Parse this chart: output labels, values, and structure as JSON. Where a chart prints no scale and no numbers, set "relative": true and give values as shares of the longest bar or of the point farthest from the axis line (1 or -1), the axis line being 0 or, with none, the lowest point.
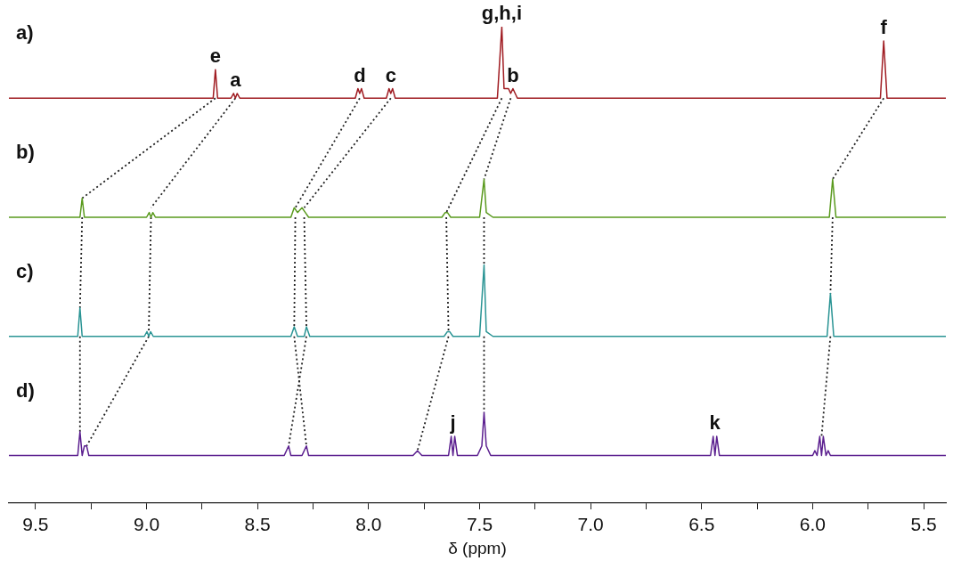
{
  "chart_data": {
    "type": "line",
    "relative": true,
    "xlabel": "δ (ppm)",
    "xlim": [
      9.62,
      5.4
    ],
    "xticks": [
      9.5,
      {
        "value": 9.25,
        "label": null
      },
      {
        "value": 9,
        "label": "9.0"
      },
      {
        "value": 8.75,
        "label": null
      },
      8.5,
      {
        "value": 8.25,
        "label": null
      },
      {
        "value": 8,
        "label": "8.0"
      },
      {
        "value": 7.75,
        "label": null
      },
      7.5,
      {
        "value": 7.25,
        "label": null
      },
      {
        "value": 7,
        "label": "7.0"
      },
      {
        "value": 6.75,
        "label": null
      },
      6.5,
      {
        "value": 6.25,
        "label": null
      },
      {
        "value": 6,
        "label": "6.0"
      },
      {
        "value": 5.75,
        "label": null
      },
      5.5
    ],
    "tick_labels": "x",
    "grid": false,
    "legend": false,
    "marker": "none",
    "series": [
      {
        "color": "#a01c22",
        "x": [
          9.62,
          8.7,
          8.69,
          8.68,
          8.62,
          8.608,
          8.6,
          8.592,
          8.58,
          8.06,
          8.048,
          8.04,
          8.032,
          8.02,
          7.92,
          7.908,
          7.9,
          7.892,
          7.88,
          7.42,
          7.4,
          7.39,
          7.37,
          7.36,
          7.35,
          7.33,
          5.695,
          5.68,
          5.665,
          5.4
        ],
        "values": [
          0.85,
          0.85,
          0.91,
          0.85,
          0.85,
          0.86,
          0.85,
          0.86,
          0.85,
          0.85,
          0.87,
          0.86,
          0.87,
          0.85,
          0.85,
          0.87,
          0.86,
          0.87,
          0.85,
          0.85,
          1,
          0.87,
          0.87,
          0.86,
          0.87,
          0.85,
          0.85,
          0.97,
          0.85,
          0.85
        ]
      },
      {
        "color": "#5a9a1e",
        "x": [
          9.62,
          9.3,
          9.29,
          9.28,
          9.0,
          8.988,
          8.98,
          8.972,
          8.96,
          8.35,
          8.335,
          8.32,
          8.3,
          8.285,
          8.27,
          7.67,
          7.655,
          7.645,
          7.63,
          7.5,
          7.48,
          7.47,
          7.44,
          5.925,
          5.91,
          5.895,
          5.4
        ],
        "values": [
          0.6,
          0.6,
          0.64,
          0.6,
          0.6,
          0.61,
          0.6,
          0.61,
          0.6,
          0.6,
          0.62,
          0.61,
          0.62,
          0.61,
          0.6,
          0.6,
          0.61,
          0.61,
          0.6,
          0.6,
          0.68,
          0.61,
          0.6,
          0.6,
          0.68,
          0.6,
          0.6
        ]
      },
      {
        "color": "#2a9494",
        "x": [
          9.62,
          9.31,
          9.3,
          9.29,
          9.01,
          8.998,
          8.99,
          8.982,
          8.97,
          8.35,
          8.335,
          8.32,
          8.29,
          8.28,
          8.265,
          7.66,
          7.645,
          7.635,
          7.62,
          7.5,
          7.48,
          7.47,
          7.44,
          5.935,
          5.92,
          5.905,
          5.4
        ],
        "values": [
          0.35,
          0.35,
          0.41,
          0.35,
          0.35,
          0.36,
          0.35,
          0.36,
          0.35,
          0.35,
          0.37,
          0.35,
          0.35,
          0.37,
          0.35,
          0.35,
          0.36,
          0.36,
          0.35,
          0.35,
          0.5,
          0.36,
          0.35,
          0.35,
          0.44,
          0.35,
          0.35
        ]
      },
      {
        "color": "#5b1f8f",
        "x": [
          9.62,
          9.31,
          9.3,
          9.29,
          9.28,
          9.27,
          9.26,
          8.38,
          8.36,
          8.35,
          8.3,
          8.28,
          8.27,
          7.8,
          7.78,
          7.76,
          7.64,
          7.628,
          7.62,
          7.612,
          7.6,
          7.51,
          7.49,
          7.48,
          7.47,
          7.45,
          6.46,
          6.448,
          6.44,
          6.432,
          6.42,
          6.0,
          5.99,
          5.98,
          5.968,
          5.96,
          5.952,
          5.94,
          5.93,
          5.92,
          5.4
        ],
        "values": [
          0.1,
          0.1,
          0.15,
          0.1,
          0.12,
          0.12,
          0.1,
          0.1,
          0.12,
          0.1,
          0.1,
          0.12,
          0.1,
          0.1,
          0.11,
          0.1,
          0.1,
          0.14,
          0.1,
          0.14,
          0.1,
          0.1,
          0.12,
          0.19,
          0.12,
          0.1,
          0.1,
          0.14,
          0.1,
          0.14,
          0.1,
          0.1,
          0.11,
          0.1,
          0.14,
          0.1,
          0.14,
          0.1,
          0.11,
          0.1,
          0.1
        ]
      },
      {
        "color": "#222222",
        "line_style": "dotted",
        "x": [
          8.69,
          9.29
        ],
        "values": [
          0.85,
          0.64
        ]
      },
      {
        "color": "#222222",
        "line_style": "dotted",
        "x": [
          8.6,
          8.98
        ],
        "values": [
          0.85,
          0.62
        ]
      },
      {
        "color": "#222222",
        "line_style": "dotted",
        "x": [
          8.04,
          8.33
        ],
        "values": [
          0.85,
          0.62
        ]
      },
      {
        "color": "#222222",
        "line_style": "dotted",
        "x": [
          7.9,
          8.29
        ],
        "values": [
          0.85,
          0.62
        ]
      },
      {
        "color": "#222222",
        "line_style": "dotted",
        "x": [
          7.4,
          7.65
        ],
        "values": [
          0.85,
          0.61
        ]
      },
      {
        "color": "#222222",
        "line_style": "dotted",
        "x": [
          7.36,
          7.48
        ],
        "values": [
          0.85,
          0.68
        ]
      },
      {
        "color": "#222222",
        "line_style": "dotted",
        "x": [
          5.68,
          5.91
        ],
        "values": [
          0.85,
          0.68
        ]
      },
      {
        "color": "#222222",
        "line_style": "dotted",
        "x": [
          9.29,
          9.3
        ],
        "values": [
          0.6,
          0.41
        ]
      },
      {
        "color": "#222222",
        "line_style": "dotted",
        "x": [
          8.98,
          8.99
        ],
        "values": [
          0.6,
          0.36
        ]
      },
      {
        "color": "#222222",
        "line_style": "dotted",
        "x": [
          8.33,
          8.335
        ],
        "values": [
          0.6,
          0.37
        ]
      },
      {
        "color": "#222222",
        "line_style": "dotted",
        "x": [
          8.29,
          8.28
        ],
        "values": [
          0.6,
          0.37
        ]
      },
      {
        "color": "#222222",
        "line_style": "dotted",
        "x": [
          7.65,
          7.64
        ],
        "values": [
          0.6,
          0.36
        ]
      },
      {
        "color": "#222222",
        "line_style": "dotted",
        "x": [
          7.48,
          7.48
        ],
        "values": [
          0.6,
          0.5
        ]
      },
      {
        "color": "#222222",
        "line_style": "dotted",
        "x": [
          5.91,
          5.92
        ],
        "values": [
          0.6,
          0.44
        ]
      },
      {
        "color": "#222222",
        "line_style": "dotted",
        "x": [
          9.3,
          9.3
        ],
        "values": [
          0.35,
          0.15
        ]
      },
      {
        "color": "#222222",
        "line_style": "dotted",
        "x": [
          8.99,
          9.27
        ],
        "values": [
          0.35,
          0.12
        ]
      },
      {
        "color": "#222222",
        "line_style": "dotted",
        "x": [
          8.335,
          8.28
        ],
        "values": [
          0.35,
          0.12
        ]
      },
      {
        "color": "#222222",
        "line_style": "dotted",
        "x": [
          8.28,
          8.36
        ],
        "values": [
          0.35,
          0.12
        ]
      },
      {
        "color": "#222222",
        "line_style": "dotted",
        "x": [
          7.64,
          7.78
        ],
        "values": [
          0.35,
          0.11
        ]
      },
      {
        "color": "#222222",
        "line_style": "dotted",
        "x": [
          7.48,
          7.48
        ],
        "values": [
          0.35,
          0.19
        ]
      },
      {
        "color": "#222222",
        "line_style": "dotted",
        "x": [
          5.92,
          5.96
        ],
        "values": [
          0.35,
          0.14
        ]
      }
    ],
    "annotations": [
      "a)",
      "b)",
      "c)",
      "d)",
      {
        "text": "e",
        "x": 8.69,
        "y": 0.91
      },
      {
        "text": "a",
        "x": 8.6,
        "y": 0.86
      },
      {
        "text": "d",
        "x": 8.04,
        "y": 0.87
      },
      {
        "text": "c",
        "x": 7.9,
        "y": 0.87
      },
      {
        "text": "g,h,i",
        "x": 7.4,
        "y": 1
      },
      {
        "text": "b",
        "x": 7.35,
        "y": 0.87
      },
      {
        "text": "f",
        "x": 5.68,
        "y": 0.97
      },
      {
        "text": "j",
        "x": 7.62,
        "y": 0.14
      },
      {
        "text": "k",
        "x": 6.44,
        "y": 0.14
      }
    ]
  }
}
